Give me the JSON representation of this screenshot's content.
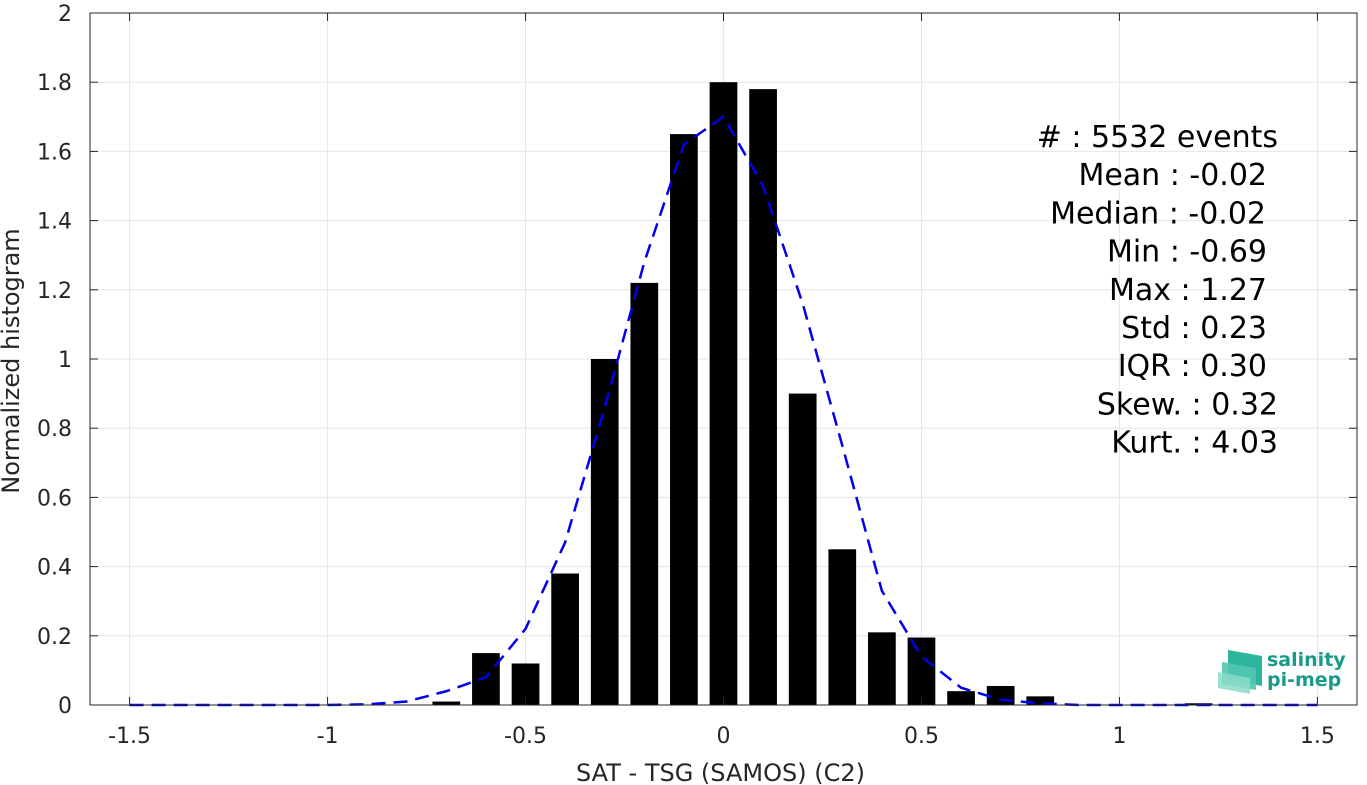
{
  "chart_data": {
    "type": "bar",
    "xlabel": "SAT - TSG (SAMOS) (C2)",
    "ylabel": "Normalized histogram",
    "xlim": [
      -1.6,
      1.6
    ],
    "ylim": [
      0,
      2
    ],
    "xticks": [
      -1.5,
      -1,
      -0.5,
      0,
      0.5,
      1,
      1.5
    ],
    "xtick_labels": [
      "-1.5",
      "-1",
      "-0.5",
      "0",
      "0.5",
      "1",
      "1.5"
    ],
    "yticks": [
      0,
      0.2,
      0.4,
      0.6,
      0.8,
      1,
      1.2,
      1.4,
      1.6,
      1.8,
      2
    ],
    "ytick_labels": [
      "0",
      "0.2",
      "0.4",
      "0.6",
      "0.8",
      "1",
      "1.2",
      "1.4",
      "1.6",
      "1.8",
      "2"
    ],
    "grid": true,
    "bar_width": 0.07,
    "bars": {
      "x": [
        -0.7,
        -0.6,
        -0.5,
        -0.4,
        -0.3,
        -0.2,
        -0.1,
        0.0,
        0.1,
        0.2,
        0.3,
        0.4,
        0.5,
        0.6,
        0.7,
        0.8,
        1.2
      ],
      "values": [
        0.01,
        0.15,
        0.12,
        0.38,
        1.0,
        1.22,
        1.65,
        1.8,
        1.78,
        0.9,
        0.45,
        0.21,
        0.195,
        0.04,
        0.055,
        0.025,
        0.005
      ],
      "color": "#000000"
    },
    "fit_curve": {
      "style": "dashed",
      "color": "#0000ee",
      "x": [
        -1.5,
        -1.4,
        -1.3,
        -1.2,
        -1.1,
        -1.0,
        -0.9,
        -0.8,
        -0.7,
        -0.6,
        -0.5,
        -0.4,
        -0.3,
        -0.2,
        -0.1,
        0.0,
        0.1,
        0.2,
        0.3,
        0.4,
        0.5,
        0.6,
        0.7,
        0.8,
        0.9,
        1.0,
        1.1,
        1.2,
        1.3,
        1.4,
        1.5
      ],
      "y": [
        0.0,
        0.0,
        0.0,
        0.0,
        0.0,
        0.0,
        0.002,
        0.01,
        0.04,
        0.08,
        0.22,
        0.47,
        0.86,
        1.28,
        1.62,
        1.7,
        1.5,
        1.16,
        0.75,
        0.33,
        0.14,
        0.05,
        0.015,
        0.005,
        0.0,
        0.0,
        0.0,
        0.0,
        0.0,
        0.0,
        0.0
      ]
    },
    "stats_text": [
      "#  : 5532 events",
      "Mean : -0.02",
      "Median : -0.02",
      "Min : -0.69",
      "Max : 1.27",
      "Std : 0.23",
      "IQR : 0.30",
      "Skew. : 0.32",
      "Kurt. : 4.03"
    ]
  },
  "logo": {
    "line1": "salinity",
    "line2": "pi-mep"
  },
  "colors": {
    "bar": "#000000",
    "fit": "#0000ee",
    "grid": "#e6e6e6",
    "axis": "#262626",
    "logo": "#1a9a8a"
  }
}
